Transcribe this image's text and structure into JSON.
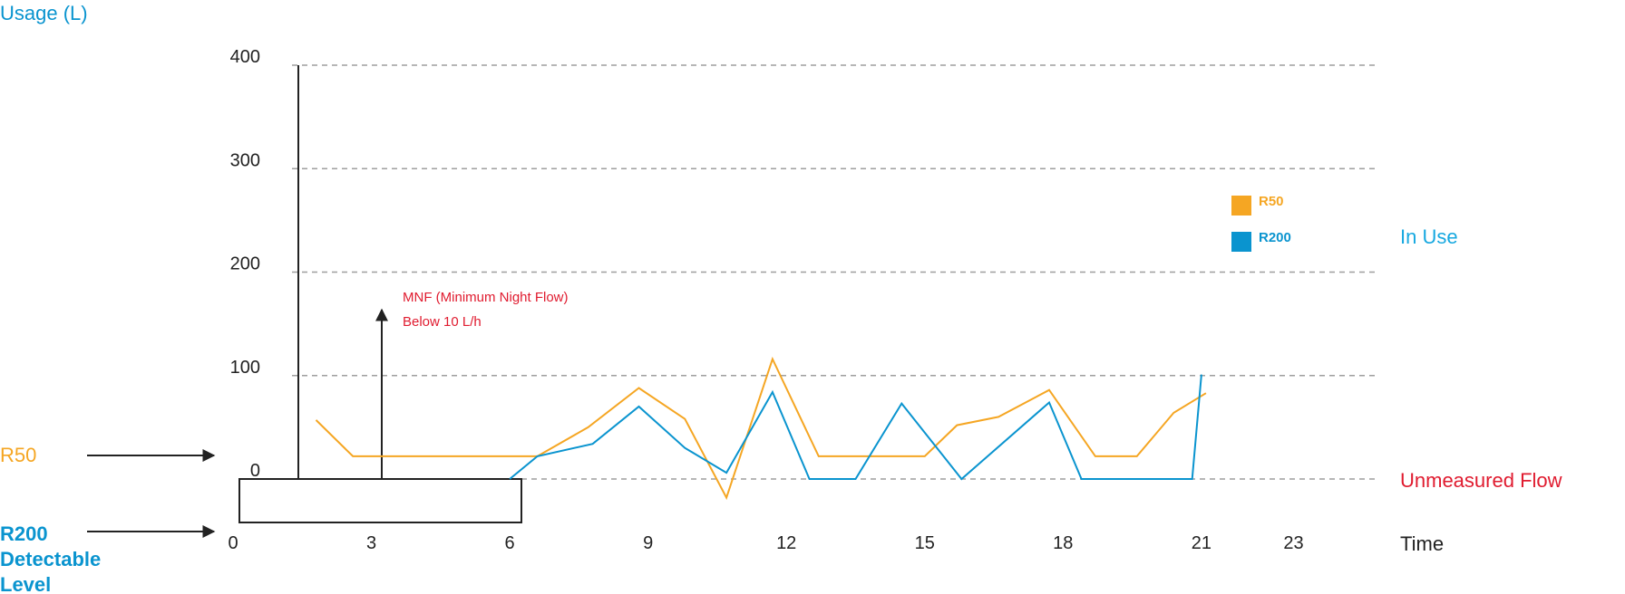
{
  "colors": {
    "r50": "#F5A623",
    "r200": "#0A94CF",
    "accent_red": "#E01B2F",
    "in_use_blue": "#16A8E0",
    "axis": "#222222",
    "grid": "#9E9E9E",
    "text": "#222222"
  },
  "labels": {
    "y_title": "Usage (L)",
    "in_use": "In Use",
    "unmeasured_flow": "Unmeasured Flow",
    "time": "Time",
    "r50_indicator": "R50",
    "r200_indicator_lines": [
      "R200",
      "Detectable",
      "Level"
    ],
    "mnf_line1": "MNF (Minimum Night Flow)",
    "mnf_line2": "Below 10 L/h"
  },
  "chart_data": {
    "type": "line",
    "title": "",
    "xlabel": "Time",
    "ylabel": "Usage (L)",
    "x_ticks": [
      "0",
      "3",
      "6",
      "9",
      "12",
      "15",
      "18",
      "21",
      "23"
    ],
    "y_ticks": [
      "0",
      "100",
      "200",
      "300",
      "400"
    ],
    "x_tick_values": [
      0,
      3,
      6,
      9,
      12,
      15,
      18,
      21,
      23
    ],
    "y_tick_values": [
      0,
      100,
      200,
      300,
      400
    ],
    "xlim": [
      0,
      23.2
    ],
    "ylim": [
      0,
      400
    ],
    "grid": true,
    "legend_position": "right",
    "series": [
      {
        "name": "R50",
        "color_key": "r50",
        "points": [
          [
            1.8,
            57
          ],
          [
            2.6,
            22
          ],
          [
            3,
            22
          ],
          [
            4,
            22
          ],
          [
            5,
            22
          ],
          [
            6.2,
            22
          ],
          [
            6.6,
            22
          ],
          [
            7.7,
            50
          ],
          [
            8.8,
            88
          ],
          [
            9.8,
            58
          ],
          [
            10.7,
            -18
          ],
          [
            11.7,
            116
          ],
          [
            12.7,
            22
          ],
          [
            13.6,
            22
          ],
          [
            14.5,
            22
          ],
          [
            15,
            22
          ],
          [
            15.7,
            52
          ],
          [
            16.6,
            60
          ],
          [
            17.7,
            86
          ],
          [
            18.7,
            22
          ],
          [
            19.6,
            22
          ],
          [
            20.4,
            64
          ],
          [
            21.1,
            83
          ]
        ]
      },
      {
        "name": "R200",
        "color_key": "r200",
        "points": [
          [
            6,
            0
          ],
          [
            6.6,
            22
          ],
          [
            7.8,
            34
          ],
          [
            8.8,
            70
          ],
          [
            9.8,
            30
          ],
          [
            10.7,
            6
          ],
          [
            11.7,
            84
          ],
          [
            12.5,
            0
          ],
          [
            13.5,
            0
          ],
          [
            14.5,
            73
          ],
          [
            15.8,
            0
          ],
          [
            17.7,
            74
          ],
          [
            18.4,
            0
          ],
          [
            19.4,
            0
          ],
          [
            20.3,
            0
          ],
          [
            20.8,
            0
          ],
          [
            21,
            101
          ]
        ]
      }
    ],
    "annotations": [
      {
        "text": "MNF (Minimum Night Flow)"
      },
      {
        "text": "Below 10 L/h"
      }
    ]
  }
}
